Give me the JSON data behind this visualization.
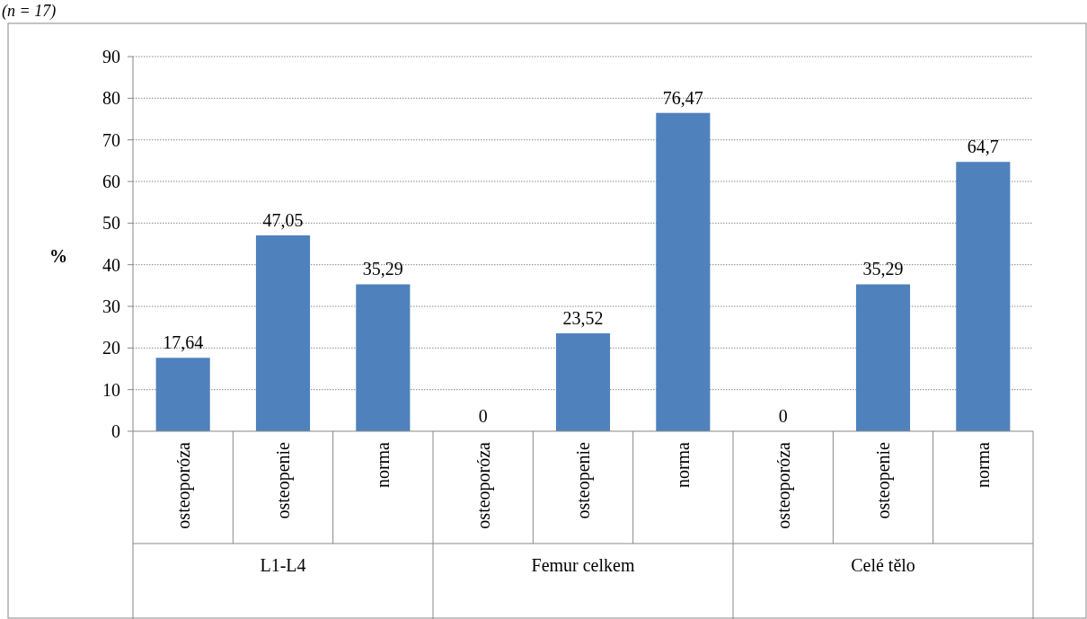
{
  "chart_data": {
    "type": "bar",
    "title": "(n = 17)",
    "ylabel": "%",
    "categories": [
      "osteoporóza",
      "osteopenie",
      "norma",
      "osteoporóza",
      "osteopenie",
      "norma",
      "osteoporóza",
      "osteopenie",
      "norma"
    ],
    "values": [
      17.64,
      47.05,
      35.29,
      0,
      23.52,
      76.47,
      0,
      35.29,
      64.7
    ],
    "value_labels": [
      "17,64",
      "47,05",
      "35,29",
      "0",
      "23,52",
      "76,47",
      "0",
      "35,29",
      "64,7"
    ],
    "color": "#4f81bd",
    "ylim": [
      0,
      90
    ],
    "yticks": [
      0,
      10,
      20,
      30,
      40,
      50,
      60,
      70,
      80,
      90
    ],
    "grid": "y",
    "annotations": [
      "L1-L4",
      "Femur celkem",
      "Celé tělo"
    ]
  }
}
